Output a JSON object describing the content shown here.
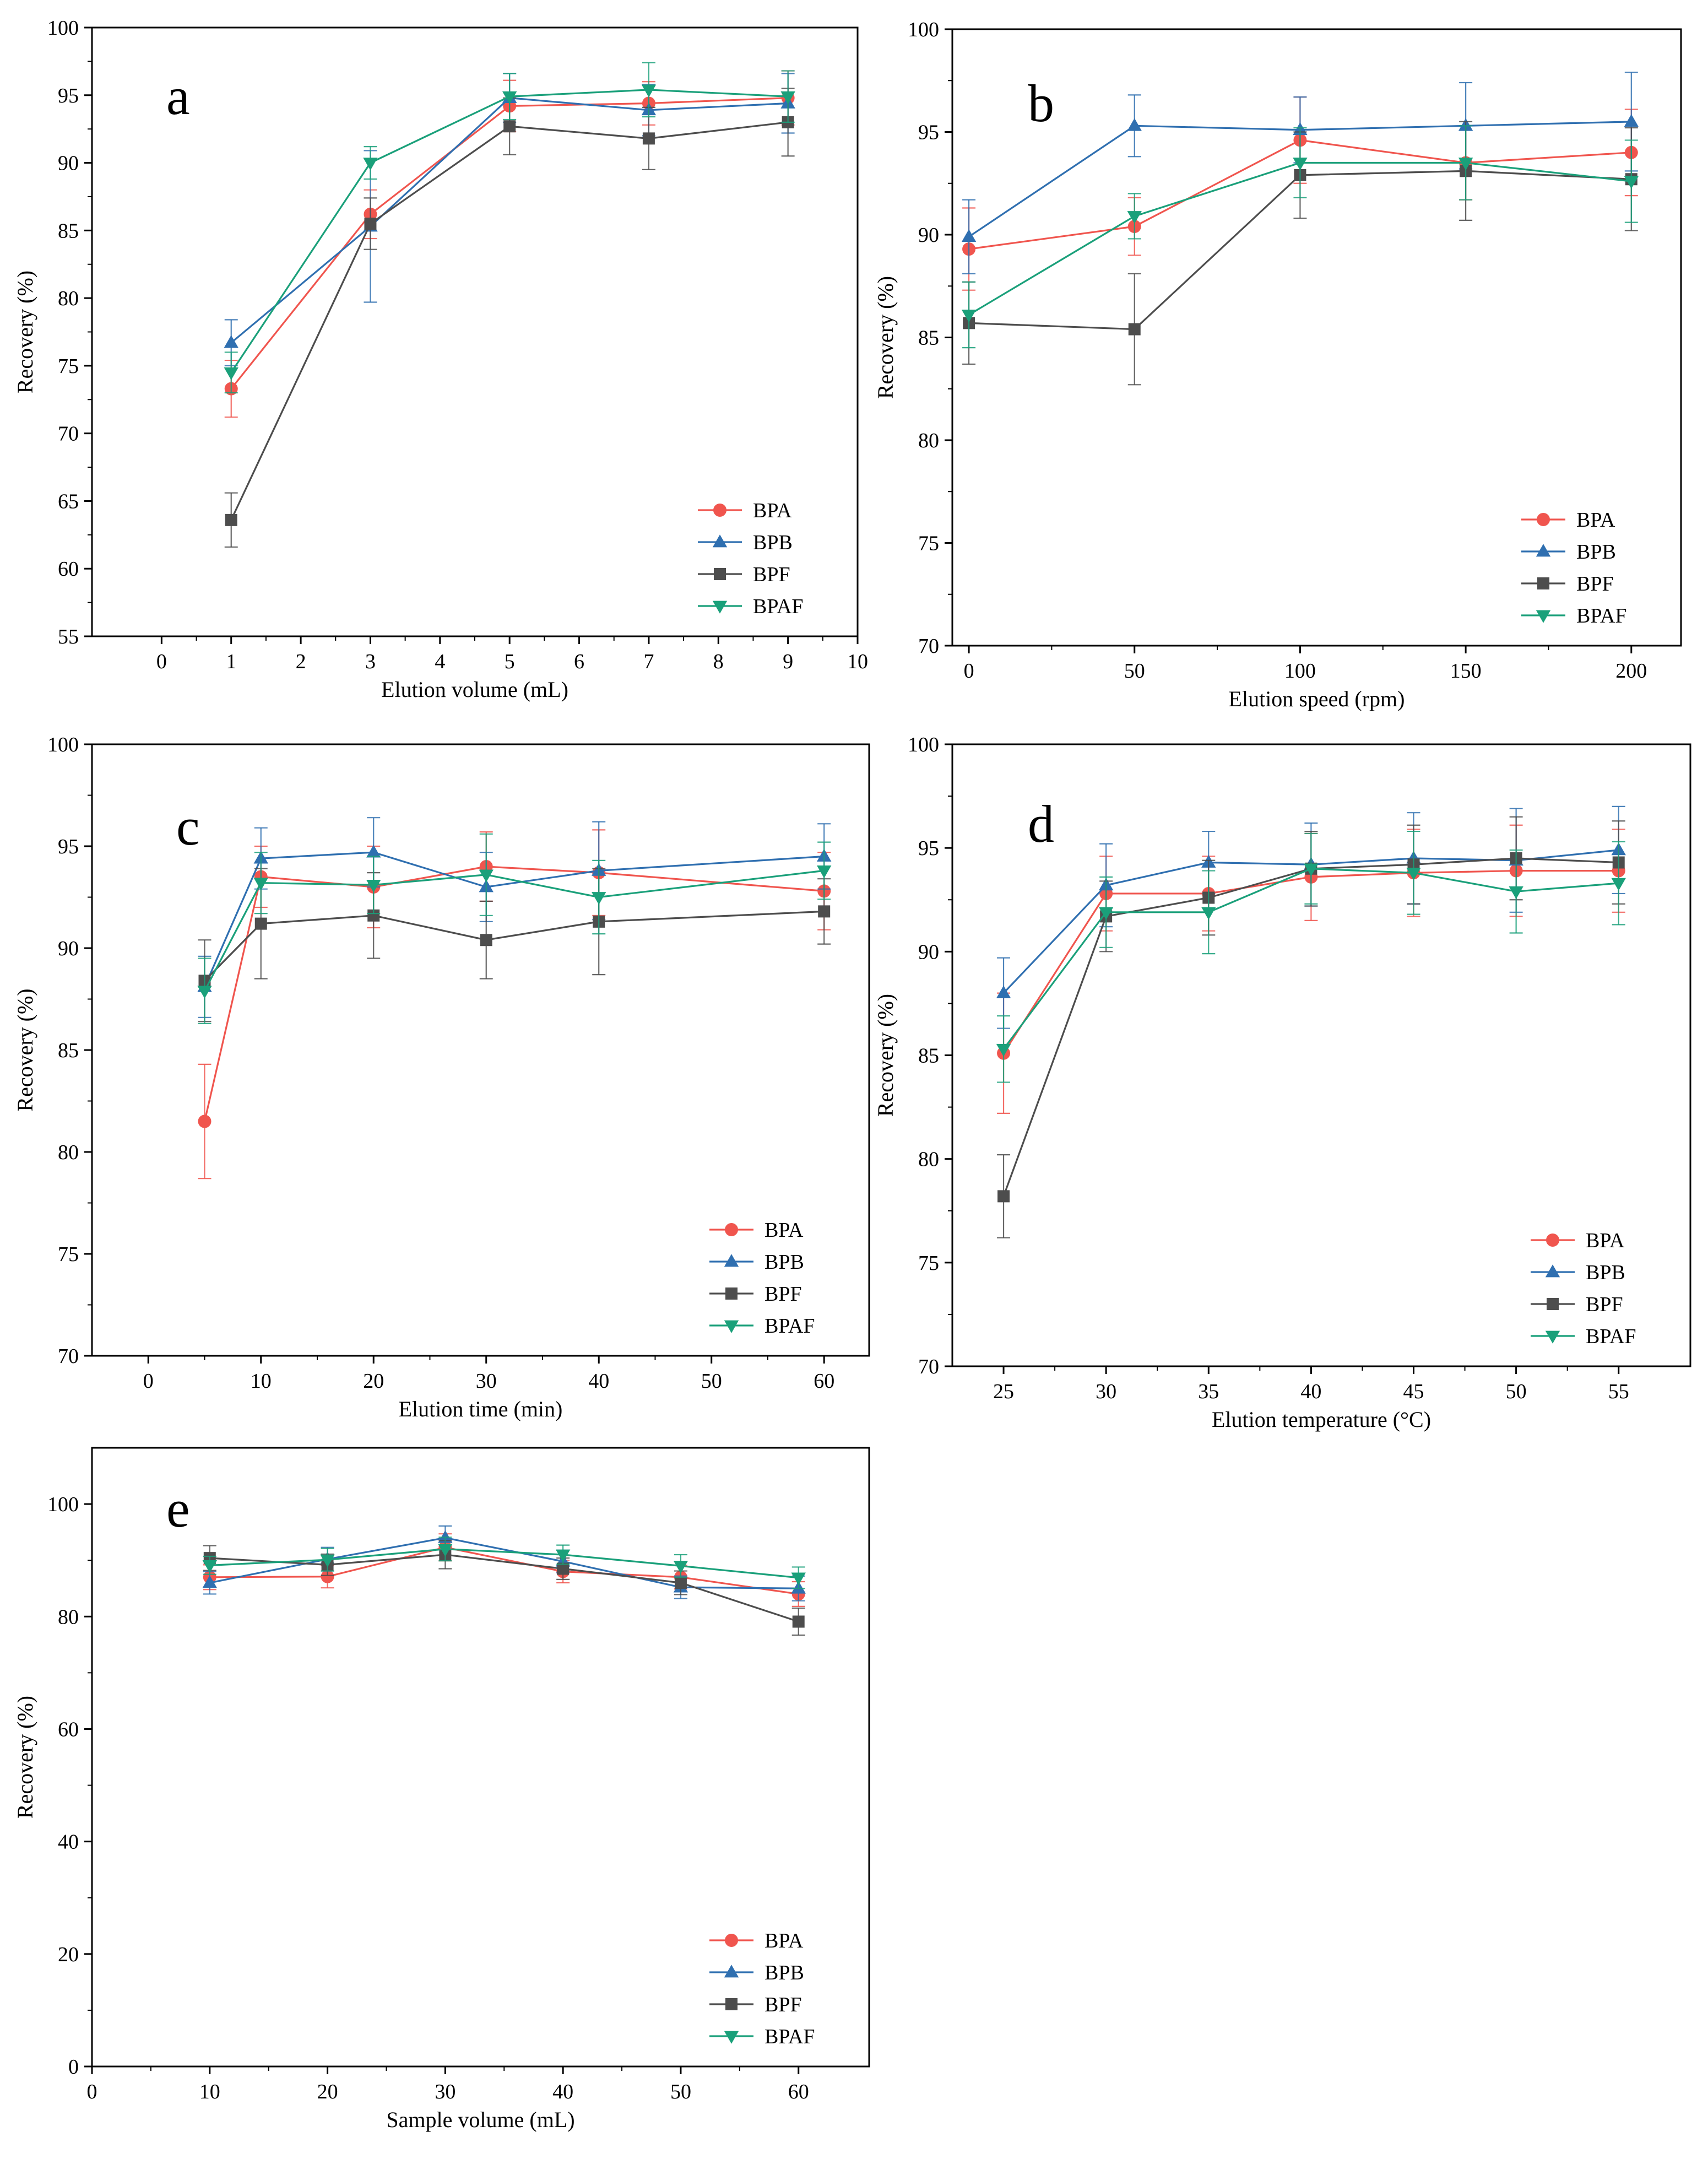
{
  "colors": {
    "BPA": "#f0554e",
    "BPB": "#2f6fb0",
    "BPF": "#4d4d4d",
    "BPAF": "#1aa07a",
    "axis": "#000000"
  },
  "chart_data": [
    {
      "panel": "a",
      "type": "line",
      "xlabel": "Elution volume (mL)",
      "ylabel": "Recovery (%)",
      "xlim": [
        -1,
        10
      ],
      "ylim": [
        55,
        100
      ],
      "xticks": [
        0,
        1,
        2,
        3,
        4,
        5,
        6,
        7,
        8,
        9,
        10
      ],
      "yticks": [
        55,
        60,
        65,
        70,
        75,
        80,
        85,
        90,
        95,
        100
      ],
      "legend_position": "bottom-right",
      "x": [
        1,
        3,
        5,
        7,
        9
      ],
      "series": [
        {
          "name": "BPA",
          "marker": "circle",
          "values": [
            73.3,
            86.2,
            94.2,
            94.4,
            94.8
          ],
          "errors": [
            2.1,
            1.8,
            1.9,
            1.6,
            2.0
          ]
        },
        {
          "name": "BPB",
          "marker": "triangle-up",
          "values": [
            76.7,
            85.3,
            94.8,
            93.9,
            94.4
          ],
          "errors": [
            1.7,
            5.6,
            1.8,
            1.9,
            2.2
          ]
        },
        {
          "name": "BPF",
          "marker": "square",
          "values": [
            63.6,
            85.5,
            92.7,
            91.8,
            93.0
          ],
          "errors": [
            2.0,
            1.9,
            2.1,
            2.3,
            2.5
          ]
        },
        {
          "name": "BPAF",
          "marker": "triangle-down",
          "values": [
            74.5,
            90.0,
            94.9,
            95.4,
            94.9
          ],
          "errors": [
            1.5,
            1.2,
            1.7,
            2.0,
            1.9
          ]
        }
      ]
    },
    {
      "panel": "b",
      "type": "line",
      "xlabel": "Elution speed (rpm)",
      "ylabel": "Recovery (%)",
      "xlim": [
        -5,
        215
      ],
      "ylim": [
        70,
        100
      ],
      "xticks": [
        0,
        50,
        100,
        150,
        200
      ],
      "yticks": [
        70,
        75,
        80,
        85,
        90,
        95,
        100
      ],
      "legend_position": "bottom-right",
      "x": [
        0,
        50,
        100,
        150,
        200
      ],
      "series": [
        {
          "name": "BPA",
          "marker": "circle",
          "values": [
            89.3,
            90.4,
            94.6,
            93.5,
            94.0
          ],
          "errors": [
            2.0,
            1.4,
            2.1,
            1.8,
            2.1
          ]
        },
        {
          "name": "BPB",
          "marker": "triangle-up",
          "values": [
            89.9,
            95.3,
            95.1,
            95.3,
            95.5
          ],
          "errors": [
            1.8,
            1.5,
            1.6,
            2.1,
            2.4
          ]
        },
        {
          "name": "BPF",
          "marker": "square",
          "values": [
            85.7,
            85.4,
            92.9,
            93.1,
            92.7
          ],
          "errors": [
            2.0,
            2.7,
            2.1,
            2.4,
            2.5
          ]
        },
        {
          "name": "BPAF",
          "marker": "triangle-down",
          "values": [
            86.1,
            90.9,
            93.5,
            93.5,
            92.6
          ],
          "errors": [
            1.6,
            1.1,
            1.7,
            1.8,
            2.0
          ]
        }
      ]
    },
    {
      "panel": "c",
      "type": "line",
      "xlabel": "Elution time (min)",
      "ylabel": "Recovery (%)",
      "xlim": [
        -5,
        64
      ],
      "ylim": [
        70,
        100
      ],
      "xticks": [
        0,
        10,
        20,
        30,
        40,
        50,
        60
      ],
      "yticks": [
        70,
        75,
        80,
        85,
        90,
        95,
        100
      ],
      "legend_position": "bottom-right",
      "x": [
        5,
        10,
        20,
        30,
        40,
        60
      ],
      "series": [
        {
          "name": "BPA",
          "marker": "circle",
          "values": [
            81.5,
            93.5,
            93.0,
            94.0,
            93.7,
            92.8
          ],
          "errors": [
            2.8,
            1.5,
            2.0,
            1.7,
            2.1,
            1.9
          ]
        },
        {
          "name": "BPB",
          "marker": "triangle-up",
          "values": [
            88.1,
            94.4,
            94.7,
            93.0,
            93.8,
            94.5
          ],
          "errors": [
            1.5,
            1.5,
            1.7,
            1.7,
            2.4,
            1.6
          ]
        },
        {
          "name": "BPF",
          "marker": "square",
          "values": [
            88.4,
            91.2,
            91.6,
            90.4,
            91.3,
            91.8
          ],
          "errors": [
            2.0,
            2.7,
            2.1,
            1.9,
            2.6,
            1.6
          ]
        },
        {
          "name": "BPAF",
          "marker": "triangle-down",
          "values": [
            87.9,
            93.2,
            93.1,
            93.6,
            92.5,
            93.8
          ],
          "errors": [
            1.6,
            1.5,
            1.4,
            2.0,
            1.8,
            1.4
          ]
        }
      ]
    },
    {
      "panel": "d",
      "type": "line",
      "xlabel": "Elution temperature (°C)",
      "ylabel": "Recovery (%)",
      "xlim": [
        22.5,
        58.5
      ],
      "ylim": [
        70,
        100
      ],
      "xticks": [
        25,
        30,
        35,
        40,
        45,
        50,
        55
      ],
      "yticks": [
        70,
        75,
        80,
        85,
        90,
        95,
        100
      ],
      "legend_position": "bottom-right",
      "x": [
        25,
        30,
        35,
        40,
        45,
        50,
        55
      ],
      "series": [
        {
          "name": "BPA",
          "marker": "circle",
          "values": [
            85.1,
            92.8,
            92.8,
            93.6,
            93.8,
            93.9,
            93.9
          ],
          "errors": [
            2.9,
            1.8,
            1.8,
            2.1,
            2.1,
            2.2,
            2.0
          ]
        },
        {
          "name": "BPB",
          "marker": "triangle-up",
          "values": [
            88.0,
            93.2,
            94.3,
            94.2,
            94.5,
            94.4,
            94.9
          ],
          "errors": [
            1.7,
            2.0,
            1.5,
            2.0,
            2.2,
            2.5,
            2.1
          ]
        },
        {
          "name": "BPF",
          "marker": "square",
          "values": [
            78.2,
            91.7,
            92.6,
            94.0,
            94.2,
            94.5,
            94.3
          ],
          "errors": [
            2.0,
            1.7,
            1.8,
            1.8,
            1.9,
            2.0,
            2.0
          ]
        },
        {
          "name": "BPAF",
          "marker": "triangle-down",
          "values": [
            85.3,
            91.9,
            91.9,
            94.0,
            93.8,
            92.9,
            93.3
          ],
          "errors": [
            1.6,
            1.7,
            2.0,
            1.7,
            2.0,
            2.0,
            2.0
          ]
        }
      ]
    },
    {
      "panel": "e",
      "type": "line",
      "xlabel": "Sample volume (mL)",
      "ylabel": "Recovery (%)",
      "xlim": [
        0,
        66
      ],
      "ylim": [
        0,
        110
      ],
      "xticks": [
        0,
        10,
        20,
        30,
        40,
        50,
        60
      ],
      "yticks": [
        0,
        20,
        40,
        60,
        80,
        100
      ],
      "legend_position": "bottom-right",
      "x": [
        10,
        20,
        30,
        40,
        50,
        60
      ],
      "series": [
        {
          "name": "BPA",
          "marker": "circle",
          "values": [
            87.0,
            87.1,
            92.3,
            88.0,
            87.0,
            84.0
          ],
          "errors": [
            2.2,
            2.0,
            2.4,
            2.0,
            2.1,
            2.2
          ]
        },
        {
          "name": "BPB",
          "marker": "triangle-up",
          "values": [
            86.0,
            90.2,
            94.0,
            89.8,
            85.2,
            85.0
          ],
          "errors": [
            2.0,
            2.1,
            2.1,
            2.0,
            2.0,
            2.2
          ]
        },
        {
          "name": "BPF",
          "marker": "square",
          "values": [
            90.4,
            89.2,
            91.0,
            88.5,
            86.0,
            79.1
          ],
          "errors": [
            2.2,
            1.9,
            2.5,
            1.9,
            2.1,
            2.4
          ]
        },
        {
          "name": "BPAF",
          "marker": "triangle-down",
          "values": [
            89.1,
            90.1,
            92.0,
            91.0,
            89.0,
            86.9
          ],
          "errors": [
            1.6,
            2.0,
            2.1,
            1.7,
            2.0,
            1.9
          ]
        }
      ]
    }
  ]
}
